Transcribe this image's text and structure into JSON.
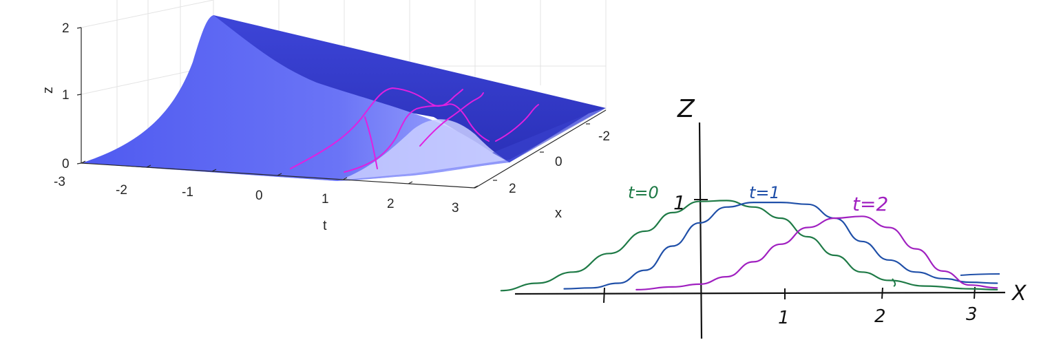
{
  "chart_data": [
    {
      "type": "surface3d",
      "xlabel": "t",
      "ylabel": "x",
      "zlabel": "z",
      "t_ticks": [
        "-3",
        "-2",
        "-1",
        "0",
        "1",
        "2",
        "3"
      ],
      "x_ticks": [
        "-2",
        "0",
        "2"
      ],
      "z_ticks": [
        "0",
        "1",
        "2"
      ],
      "tlim": [
        -3,
        3
      ],
      "xlim": [
        -3,
        3
      ],
      "zlim": [
        0,
        2
      ],
      "grid": true,
      "surface_color": "#5a64f0",
      "annotation_color": "#e020e0"
    },
    {
      "type": "line",
      "xlabel": "X",
      "ylabel": "Z",
      "x_tick_labels": [
        "1",
        "2",
        "3"
      ],
      "y_tick_labels": [
        "1"
      ],
      "xlim": [
        -2.2,
        3.3
      ],
      "ylim": [
        0,
        1.2
      ],
      "series": [
        {
          "name": "t=0",
          "color": "#1e7a46",
          "x": [
            -2.2,
            -1.8,
            -1.4,
            -1.0,
            -0.6,
            -0.3,
            0.0,
            0.3,
            0.6,
            0.9,
            1.2,
            1.5,
            1.8,
            2.1,
            2.5,
            3.0,
            3.3
          ],
          "y": [
            0.02,
            0.1,
            0.22,
            0.42,
            0.66,
            0.86,
            0.98,
            0.99,
            0.92,
            0.8,
            0.6,
            0.4,
            0.22,
            0.13,
            0.07,
            0.04,
            0.03
          ]
        },
        {
          "name": "t=1",
          "color": "#1f4fa8",
          "x": [
            -1.5,
            -1.2,
            -0.9,
            -0.6,
            -0.3,
            0.0,
            0.3,
            0.6,
            0.9,
            1.2,
            1.5,
            1.8,
            2.1,
            2.4,
            2.7,
            3.0,
            3.3
          ],
          "y": [
            0.04,
            0.05,
            0.1,
            0.24,
            0.5,
            0.75,
            0.92,
            0.97,
            0.97,
            0.95,
            0.8,
            0.55,
            0.35,
            0.22,
            0.15,
            0.11,
            0.1
          ]
        },
        {
          "name": "t=2",
          "color": "#a020c0",
          "x": [
            -0.7,
            -0.3,
            0.0,
            0.3,
            0.6,
            0.9,
            1.2,
            1.5,
            1.8,
            2.1,
            2.4,
            2.7,
            3.0,
            3.3
          ],
          "y": [
            0.03,
            0.06,
            0.09,
            0.17,
            0.33,
            0.52,
            0.7,
            0.8,
            0.82,
            0.7,
            0.47,
            0.23,
            0.08,
            0.05
          ]
        }
      ]
    }
  ]
}
